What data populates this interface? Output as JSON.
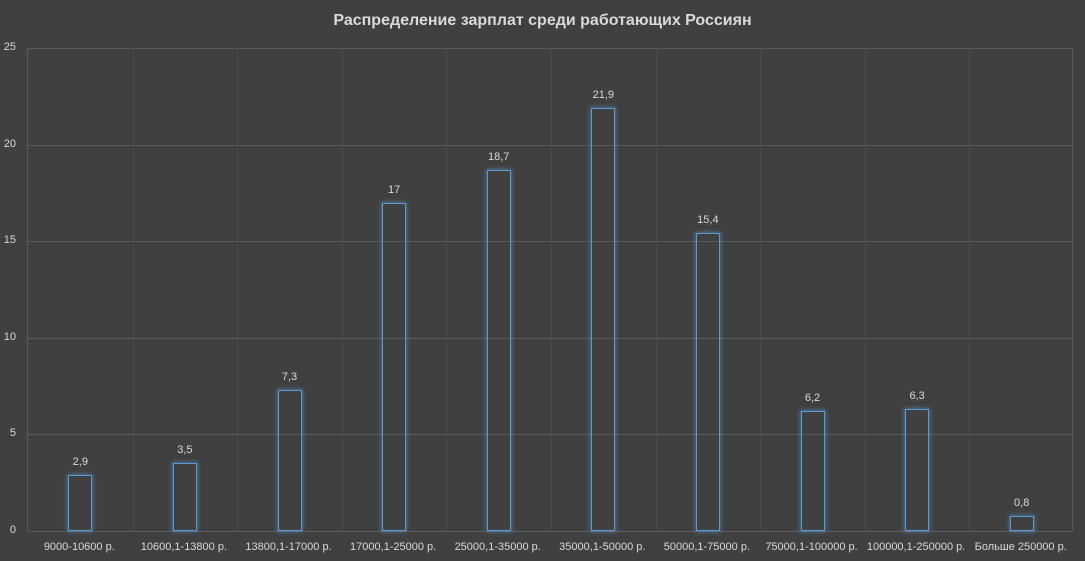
{
  "chart_data": {
    "type": "bar",
    "title": "Распределение зарплат среди работающих Россиян",
    "xlabel": "",
    "ylabel": "",
    "ylim": [
      0,
      25
    ],
    "yticks": [
      0,
      5,
      10,
      15,
      20,
      25
    ],
    "ytick_labels": [
      "0",
      "5",
      "10",
      "15",
      "20",
      "25"
    ],
    "grid": true,
    "legend": null,
    "categories": [
      "9000-10600 р.",
      "10600,1-13800 р.",
      "13800,1-17000 р.",
      "17000,1-25000 р.",
      "25000,1-35000 р.",
      "35000,1-50000 р.",
      "50000,1-75000 р.",
      "75000,1-100000 р.",
      "100000,1-250000 р.",
      "Больше 250000 р."
    ],
    "values": [
      2.9,
      3.5,
      7.3,
      17,
      18.7,
      21.9,
      15.4,
      6.2,
      6.3,
      0.8
    ],
    "data_labels": [
      "2,9",
      "3,5",
      "7,3",
      "17",
      "18,7",
      "21,9",
      "15,4",
      "6,2",
      "6,3",
      "0,8"
    ],
    "colors": {
      "bar_outline": "#5b9bd5",
      "background": "#404040",
      "grid": "#5a5a5a",
      "text": "#d9d9d9"
    }
  }
}
